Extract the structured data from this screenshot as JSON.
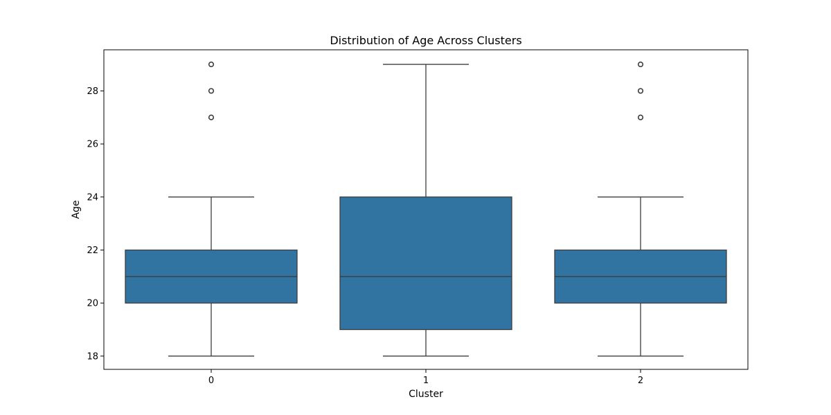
{
  "chart_data": {
    "type": "box",
    "title": "Distribution of Age Across Clusters",
    "xlabel": "Cluster",
    "ylabel": "Age",
    "categories": [
      "0",
      "1",
      "2"
    ],
    "ylim": [
      17.5,
      29.55
    ],
    "yticks": [
      18,
      20,
      22,
      24,
      26,
      28
    ],
    "grid": false,
    "box_color": "#3274a1",
    "line_color": "#3d3d3d",
    "boxes": [
      {
        "category": "0",
        "whisker_low": 18,
        "q1": 20,
        "median": 21,
        "q3": 22,
        "whisker_high": 24,
        "outliers": [
          27,
          28,
          29
        ]
      },
      {
        "category": "1",
        "whisker_low": 18,
        "q1": 19,
        "median": 21,
        "q3": 24,
        "whisker_high": 29,
        "outliers": []
      },
      {
        "category": "2",
        "whisker_low": 18,
        "q1": 20,
        "median": 21,
        "q3": 22,
        "whisker_high": 24,
        "outliers": [
          27,
          28,
          29
        ]
      }
    ]
  }
}
